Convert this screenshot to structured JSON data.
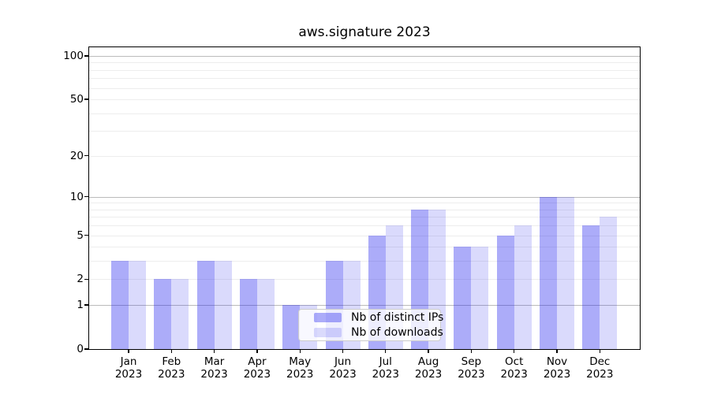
{
  "title": "aws.signature 2023",
  "chart_data": {
    "type": "bar",
    "title": "aws.signature 2023",
    "scale": "log1p",
    "categories": [
      "Jan",
      "Feb",
      "Mar",
      "Apr",
      "May",
      "Jun",
      "Jul",
      "Aug",
      "Sep",
      "Oct",
      "Nov",
      "Dec"
    ],
    "x_year": "2023",
    "series": [
      {
        "name": "Nb of distinct IPs",
        "color": "rgba(26,26,238,0.36)",
        "values": [
          3,
          2,
          3,
          2,
          1,
          3,
          5,
          8,
          4,
          5,
          10,
          6
        ]
      },
      {
        "name": "Nb of downloads",
        "color": "rgba(26,26,238,0.16)",
        "values": [
          3,
          2,
          3,
          2,
          1,
          3,
          6,
          8,
          4,
          6,
          10,
          7
        ]
      }
    ],
    "y_tick_labels": [
      0,
      1,
      2,
      5,
      10,
      20,
      50,
      100
    ],
    "major_gridlines": [
      1,
      10,
      100
    ],
    "minor_gridlines": [
      2,
      3,
      4,
      5,
      6,
      7,
      8,
      9,
      20,
      30,
      40,
      50,
      60,
      70,
      80,
      90
    ],
    "ylim": [
      0,
      115
    ],
    "legend_position": "lower center-left",
    "legend_entries": [
      "Nb of distinct IPs",
      "Nb of downloads"
    ]
  },
  "colors": {
    "grid_major": "#bbbbbb",
    "grid_minor": "#ededed",
    "axis_spine": "#000000",
    "bar_distinct_ips": "rgba(26,26,238,0.36)",
    "bar_downloads": "rgba(26,26,238,0.16)",
    "legend_background": "rgba(255,255,255,0.8)",
    "legend_border": "#cccccc"
  }
}
